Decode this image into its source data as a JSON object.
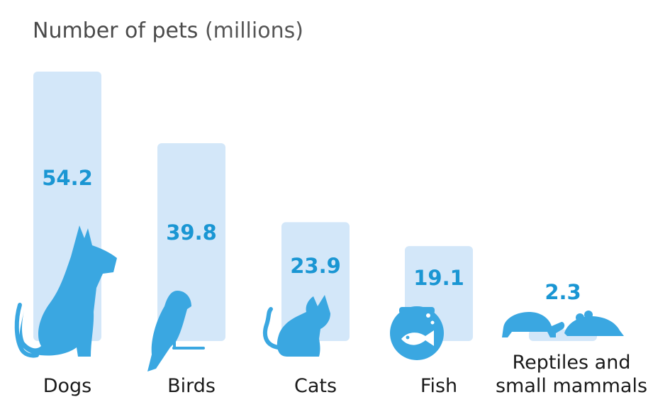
{
  "chart_data": {
    "type": "bar",
    "title": "Number of pets",
    "title_unit": "(millions)",
    "categories": [
      "Dogs",
      "Birds",
      "Cats",
      "Fish",
      "Reptiles and small mammals"
    ],
    "category_lines": [
      [
        "Dogs"
      ],
      [
        "Birds"
      ],
      [
        "Cats"
      ],
      [
        "Fish"
      ],
      [
        "Reptiles and",
        "small mammals"
      ]
    ],
    "values": [
      54.2,
      39.8,
      23.9,
      19.1,
      2.3
    ],
    "value_labels": [
      "54.2",
      "39.8",
      "23.9",
      "19.1",
      "2.3"
    ],
    "icons": [
      "dog-icon",
      "parrot-icon",
      "cat-icon",
      "fishbowl-icon",
      "turtle-and-mouse-icon"
    ],
    "xlabel": "",
    "ylabel": "",
    "ylim": [
      0,
      54.2
    ],
    "grid": false,
    "legend": "none"
  },
  "colors": {
    "bar": "#d3e7f9",
    "icon": "#3aa7e1",
    "value": "#1a96d3",
    "label": "#1a1a1a"
  }
}
